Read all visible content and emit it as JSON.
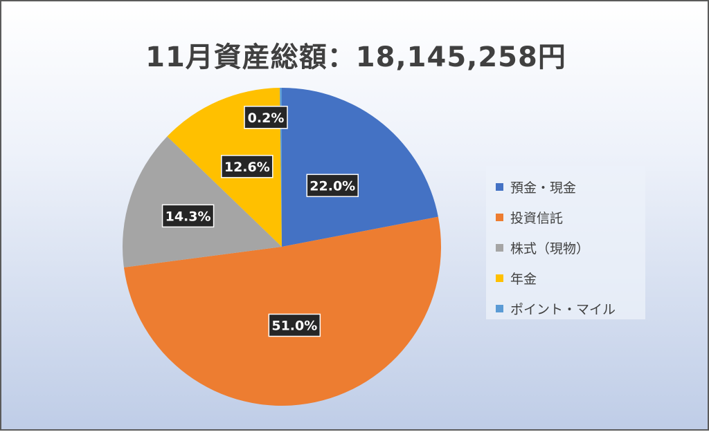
{
  "chart_data": {
    "type": "pie",
    "title": "11月資産総額：18,145,258円",
    "categories": [
      "預金・現金",
      "投資信託",
      "株式（現物）",
      "年金",
      "ポイント・マイル"
    ],
    "values": [
      22.0,
      51.0,
      14.3,
      12.6,
      0.2
    ],
    "value_labels": [
      "22.0%",
      "51.0%",
      "14.3%",
      "12.6%",
      "0.2%"
    ],
    "colors": [
      "#4472C4",
      "#ED7D31",
      "#A5A5A5",
      "#FFC000",
      "#5B9BD5"
    ],
    "start_angle_deg": 0,
    "direction": "clockwise",
    "legend_position": "right"
  }
}
